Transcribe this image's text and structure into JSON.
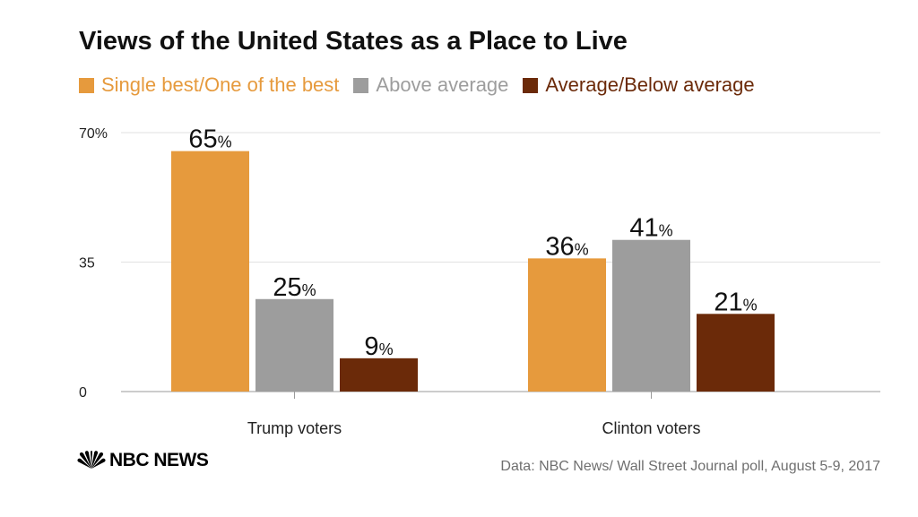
{
  "chart_data": {
    "type": "bar",
    "title": "Views of the United States as a Place to Live",
    "categories": [
      "Trump voters",
      "Clinton voters"
    ],
    "series": [
      {
        "name": "Single best/One of the best",
        "values": [
          65,
          36
        ],
        "color": "#e69a3d"
      },
      {
        "name": "Above average",
        "values": [
          25,
          41
        ],
        "color": "#9d9d9d"
      },
      {
        "name": "Average/Below average",
        "values": [
          9,
          21
        ],
        "color": "#6b2a09"
      }
    ],
    "ylim": [
      0,
      70
    ],
    "yticks": [
      0,
      35,
      70
    ],
    "ytick_labels": [
      "0",
      "35",
      "70%"
    ],
    "value_suffix": "%",
    "xlabel": "",
    "ylabel": "",
    "grid": true,
    "legend_position": "top-left"
  },
  "footer": {
    "logo_text": "NBC NEWS",
    "source": "Data: NBC News/ Wall Street Journal poll, August 5-9, 2017"
  }
}
